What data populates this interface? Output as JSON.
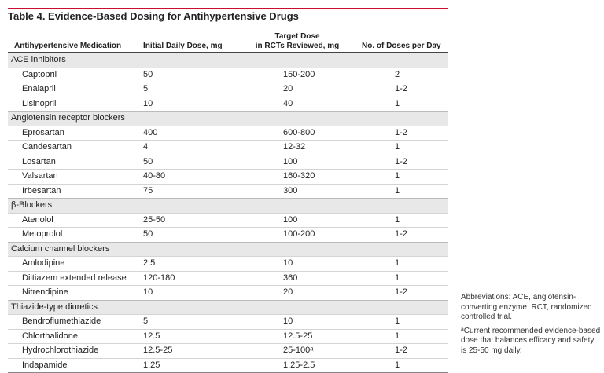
{
  "title": "Table 4. Evidence-Based Dosing for Antihypertensive Drugs",
  "headers": {
    "medication": "Antihypertensive Medication",
    "initial": "Initial Daily Dose, mg",
    "target_line1": "Target Dose",
    "target_line2": "in RCTs Reviewed, mg",
    "doses": "No. of Doses per Day"
  },
  "groups": [
    {
      "name": "ACE inhibitors",
      "rows": [
        {
          "med": "Captopril",
          "initial": "50",
          "target": "150-200",
          "doses": "2"
        },
        {
          "med": "Enalapril",
          "initial": "5",
          "target": "20",
          "doses": "1-2"
        },
        {
          "med": "Lisinopril",
          "initial": "10",
          "target": "40",
          "doses": "1"
        }
      ]
    },
    {
      "name": "Angiotensin receptor blockers",
      "rows": [
        {
          "med": "Eprosartan",
          "initial": "400",
          "target": "600-800",
          "doses": "1-2"
        },
        {
          "med": "Candesartan",
          "initial": "4",
          "target": "12-32",
          "doses": "1"
        },
        {
          "med": "Losartan",
          "initial": "50",
          "target": "100",
          "doses": "1-2"
        },
        {
          "med": "Valsartan",
          "initial": "40-80",
          "target": "160-320",
          "doses": "1"
        },
        {
          "med": "Irbesartan",
          "initial": "75",
          "target": "300",
          "doses": "1"
        }
      ]
    },
    {
      "name": "β-Blockers",
      "rows": [
        {
          "med": "Atenolol",
          "initial": "25-50",
          "target": "100",
          "doses": "1"
        },
        {
          "med": "Metoprolol",
          "initial": "50",
          "target": "100-200",
          "doses": "1-2"
        }
      ]
    },
    {
      "name": "Calcium channel blockers",
      "rows": [
        {
          "med": "Amlodipine",
          "initial": "2.5",
          "target": "10",
          "doses": "1"
        },
        {
          "med": "Diltiazem extended release",
          "initial": "120-180",
          "target": "360",
          "doses": "1"
        },
        {
          "med": "Nitrendipine",
          "initial": "10",
          "target": "20",
          "doses": "1-2"
        }
      ]
    },
    {
      "name": "Thiazide-type diuretics",
      "rows": [
        {
          "med": "Bendroflumethiazide",
          "initial": "5",
          "target": "10",
          "doses": "1"
        },
        {
          "med": "Chlorthalidone",
          "initial": "12.5",
          "target": "12.5-25",
          "doses": "1"
        },
        {
          "med": "Hydrochlorothiazide",
          "initial": "12.5-25",
          "target": "25-100ᵃ",
          "doses": "1-2"
        },
        {
          "med": "Indapamide",
          "initial": "1.25",
          "target": "1.25-2.5",
          "doses": "1"
        }
      ]
    }
  ],
  "notes": {
    "abbreviations": "Abbreviations: ACE, angiotensin-converting enzyme; RCT, randomized controlled trial.",
    "footnote": "ᵃCurrent recommended evidence-based dose that balances efficacy and safety is 25-50 mg daily."
  },
  "colors": {
    "accent_rule": "#c8102e",
    "group_background": "#e8e8e8"
  }
}
